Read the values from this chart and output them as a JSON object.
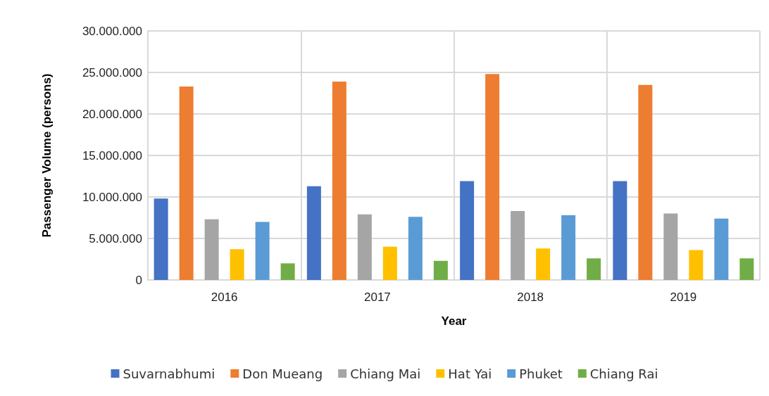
{
  "chart_data": {
    "type": "bar",
    "xlabel": "Year",
    "ylabel": "Passenger Volume (persons)",
    "categories": [
      "2016",
      "2017",
      "2018",
      "2019"
    ],
    "series": [
      {
        "name": "Suvarnabhumi",
        "color": "#4472c4",
        "values": [
          9800000,
          11300000,
          11900000,
          11900000
        ]
      },
      {
        "name": "Don Mueang",
        "color": "#ed7d31",
        "values": [
          23300000,
          23900000,
          24800000,
          23500000
        ]
      },
      {
        "name": "Chiang Mai",
        "color": "#a5a5a5",
        "values": [
          7300000,
          7900000,
          8300000,
          8000000
        ]
      },
      {
        "name": "Hat Yai",
        "color": "#ffc000",
        "values": [
          3700000,
          4000000,
          3800000,
          3600000
        ]
      },
      {
        "name": "Phuket",
        "color": "#5b9bd5",
        "values": [
          7000000,
          7600000,
          7800000,
          7400000
        ]
      },
      {
        "name": "Chiang Rai",
        "color": "#70ad47",
        "values": [
          2000000,
          2300000,
          2600000,
          2600000
        ]
      }
    ],
    "ylim": [
      0,
      30000000
    ],
    "yticks": [
      {
        "value": 0,
        "label": "0"
      },
      {
        "value": 5000000,
        "label": "5.000.000"
      },
      {
        "value": 10000000,
        "label": "10.000.000"
      },
      {
        "value": 15000000,
        "label": "15.000.000"
      },
      {
        "value": 20000000,
        "label": "20.000.000"
      },
      {
        "value": 25000000,
        "label": "25.000.000"
      },
      {
        "value": 30000000,
        "label": "30.000.000"
      }
    ],
    "grid": true,
    "legend": "bottom"
  }
}
